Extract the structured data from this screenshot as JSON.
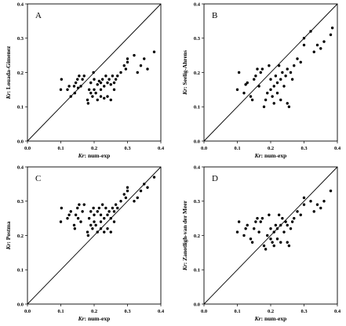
{
  "chart_data": [
    {
      "type": "scatter",
      "panel_label": "A",
      "xlabel_prefix": "Kr",
      "xlabel_suffix": ": num-exp",
      "ylabel_prefix": "Kr",
      "ylabel_suffix": ": Louada-Gimenez",
      "xlim": [
        0.0,
        0.4
      ],
      "ylim": [
        0.0,
        0.4
      ],
      "x_ticks": [
        "0.0",
        "0.1",
        "0.2",
        "0.3",
        "0.4"
      ],
      "y_ticks": [
        "0.0",
        "0.1",
        "0.2",
        "0.3",
        "0.4"
      ],
      "reference_line": "y = x",
      "grid": false,
      "series": [
        {
          "x": [
            0.1,
            0.102,
            0.12,
            0.125,
            0.13,
            0.14,
            0.142,
            0.145,
            0.15,
            0.152,
            0.155,
            0.16,
            0.165,
            0.17,
            0.18,
            0.182,
            0.185,
            0.19,
            0.19,
            0.195,
            0.198,
            0.2,
            0.2,
            0.205,
            0.21,
            0.21,
            0.215,
            0.22,
            0.22,
            0.22,
            0.225,
            0.23,
            0.23,
            0.235,
            0.24,
            0.24,
            0.245,
            0.25,
            0.25,
            0.255,
            0.26,
            0.26,
            0.265,
            0.27,
            0.28,
            0.29,
            0.295,
            0.3,
            0.3,
            0.32,
            0.33,
            0.34,
            0.35,
            0.36,
            0.38
          ],
          "y": [
            0.15,
            0.18,
            0.15,
            0.16,
            0.13,
            0.16,
            0.14,
            0.17,
            0.18,
            0.155,
            0.19,
            0.16,
            0.18,
            0.19,
            0.12,
            0.11,
            0.15,
            0.14,
            0.17,
            0.13,
            0.2,
            0.15,
            0.18,
            0.14,
            0.165,
            0.12,
            0.175,
            0.17,
            0.13,
            0.15,
            0.18,
            0.16,
            0.125,
            0.19,
            0.17,
            0.13,
            0.18,
            0.165,
            0.12,
            0.19,
            0.17,
            0.15,
            0.18,
            0.19,
            0.2,
            0.22,
            0.21,
            0.23,
            0.24,
            0.25,
            0.2,
            0.22,
            0.24,
            0.21,
            0.26
          ]
        }
      ]
    },
    {
      "type": "scatter",
      "panel_label": "B",
      "xlabel_prefix": "Kr",
      "xlabel_suffix": ": num-exp",
      "ylabel_prefix": "Kr",
      "ylabel_suffix": ": Seelig-Ahrens",
      "xlim": [
        0.0,
        0.4
      ],
      "ylim": [
        0.0,
        0.4
      ],
      "x_ticks": [
        "0.0",
        "0.1",
        "0.2",
        "0.3",
        "0.4"
      ],
      "y_ticks": [
        "0.0",
        "0.1",
        "0.2",
        "0.3",
        "0.4"
      ],
      "reference_line": "y = x",
      "grid": false,
      "series": [
        {
          "x": [
            0.1,
            0.105,
            0.12,
            0.125,
            0.13,
            0.14,
            0.145,
            0.15,
            0.155,
            0.16,
            0.165,
            0.17,
            0.175,
            0.18,
            0.185,
            0.19,
            0.195,
            0.2,
            0.2,
            0.205,
            0.21,
            0.21,
            0.215,
            0.22,
            0.22,
            0.225,
            0.23,
            0.23,
            0.235,
            0.24,
            0.245,
            0.25,
            0.25,
            0.255,
            0.26,
            0.265,
            0.27,
            0.28,
            0.29,
            0.3,
            0.3,
            0.32,
            0.33,
            0.34,
            0.35,
            0.36,
            0.38,
            0.385
          ],
          "y": [
            0.15,
            0.2,
            0.14,
            0.165,
            0.17,
            0.13,
            0.12,
            0.18,
            0.19,
            0.21,
            0.16,
            0.2,
            0.21,
            0.1,
            0.12,
            0.14,
            0.22,
            0.18,
            0.15,
            0.13,
            0.16,
            0.11,
            0.19,
            0.17,
            0.14,
            0.22,
            0.18,
            0.12,
            0.2,
            0.16,
            0.19,
            0.11,
            0.21,
            0.1,
            0.2,
            0.18,
            0.22,
            0.24,
            0.23,
            0.28,
            0.3,
            0.32,
            0.26,
            0.28,
            0.27,
            0.29,
            0.31,
            0.33
          ]
        }
      ]
    },
    {
      "type": "scatter",
      "panel_label": "C",
      "xlabel_prefix": "Kr",
      "xlabel_suffix": ": num-exp",
      "ylabel_prefix": "Kr",
      "ylabel_suffix": ": Postma",
      "xlim": [
        0.0,
        0.4
      ],
      "ylim": [
        0.0,
        0.4
      ],
      "x_ticks": [
        "0.0",
        "0.1",
        "0.2",
        "0.3",
        "0.4"
      ],
      "y_ticks": [
        "0.0",
        "0.1",
        "0.2",
        "0.3",
        "0.4"
      ],
      "reference_line": "y = x",
      "grid": false,
      "series": [
        {
          "x": [
            0.1,
            0.102,
            0.12,
            0.125,
            0.13,
            0.14,
            0.142,
            0.145,
            0.15,
            0.152,
            0.155,
            0.16,
            0.165,
            0.17,
            0.18,
            0.182,
            0.185,
            0.19,
            0.19,
            0.195,
            0.198,
            0.2,
            0.2,
            0.205,
            0.21,
            0.21,
            0.215,
            0.22,
            0.22,
            0.22,
            0.225,
            0.23,
            0.23,
            0.235,
            0.24,
            0.24,
            0.245,
            0.25,
            0.25,
            0.255,
            0.26,
            0.26,
            0.265,
            0.27,
            0.28,
            0.29,
            0.295,
            0.3,
            0.3,
            0.32,
            0.33,
            0.34,
            0.35,
            0.36,
            0.38
          ],
          "y": [
            0.24,
            0.28,
            0.25,
            0.26,
            0.27,
            0.23,
            0.22,
            0.26,
            0.28,
            0.25,
            0.29,
            0.24,
            0.27,
            0.29,
            0.21,
            0.2,
            0.25,
            0.23,
            0.27,
            0.22,
            0.28,
            0.24,
            0.26,
            0.23,
            0.27,
            0.21,
            0.28,
            0.26,
            0.22,
            0.24,
            0.29,
            0.25,
            0.21,
            0.28,
            0.26,
            0.22,
            0.27,
            0.25,
            0.21,
            0.28,
            0.27,
            0.24,
            0.29,
            0.28,
            0.3,
            0.32,
            0.31,
            0.33,
            0.34,
            0.3,
            0.31,
            0.33,
            0.35,
            0.34,
            0.37
          ]
        }
      ]
    },
    {
      "type": "scatter",
      "panel_label": "D",
      "xlabel_prefix": "Kr",
      "xlabel_suffix": ": num-exp",
      "ylabel_prefix": "Kr",
      "ylabel_suffix": ": Zanotligh-van der Meer",
      "xlim": [
        0.0,
        0.4
      ],
      "ylim": [
        0.0,
        0.4
      ],
      "x_ticks": [
        "0.0",
        "0.1",
        "0.2",
        "0.3",
        "0.4"
      ],
      "y_ticks": [
        "0.0",
        "0.1",
        "0.2",
        "0.3",
        "0.4"
      ],
      "reference_line": "y = x",
      "grid": false,
      "series": [
        {
          "x": [
            0.1,
            0.105,
            0.12,
            0.125,
            0.13,
            0.14,
            0.145,
            0.15,
            0.155,
            0.16,
            0.165,
            0.17,
            0.175,
            0.18,
            0.185,
            0.19,
            0.195,
            0.2,
            0.2,
            0.205,
            0.21,
            0.21,
            0.215,
            0.22,
            0.22,
            0.225,
            0.23,
            0.23,
            0.235,
            0.24,
            0.245,
            0.25,
            0.25,
            0.255,
            0.26,
            0.265,
            0.27,
            0.28,
            0.29,
            0.3,
            0.3,
            0.32,
            0.33,
            0.34,
            0.35,
            0.36,
            0.38
          ],
          "y": [
            0.21,
            0.24,
            0.2,
            0.22,
            0.23,
            0.19,
            0.18,
            0.22,
            0.24,
            0.25,
            0.21,
            0.24,
            0.25,
            0.17,
            0.16,
            0.2,
            0.26,
            0.22,
            0.19,
            0.18,
            0.21,
            0.17,
            0.23,
            0.22,
            0.19,
            0.26,
            0.23,
            0.18,
            0.25,
            0.21,
            0.24,
            0.18,
            0.23,
            0.17,
            0.22,
            0.24,
            0.25,
            0.27,
            0.26,
            0.29,
            0.31,
            0.3,
            0.27,
            0.29,
            0.28,
            0.3,
            0.33
          ]
        }
      ]
    }
  ]
}
